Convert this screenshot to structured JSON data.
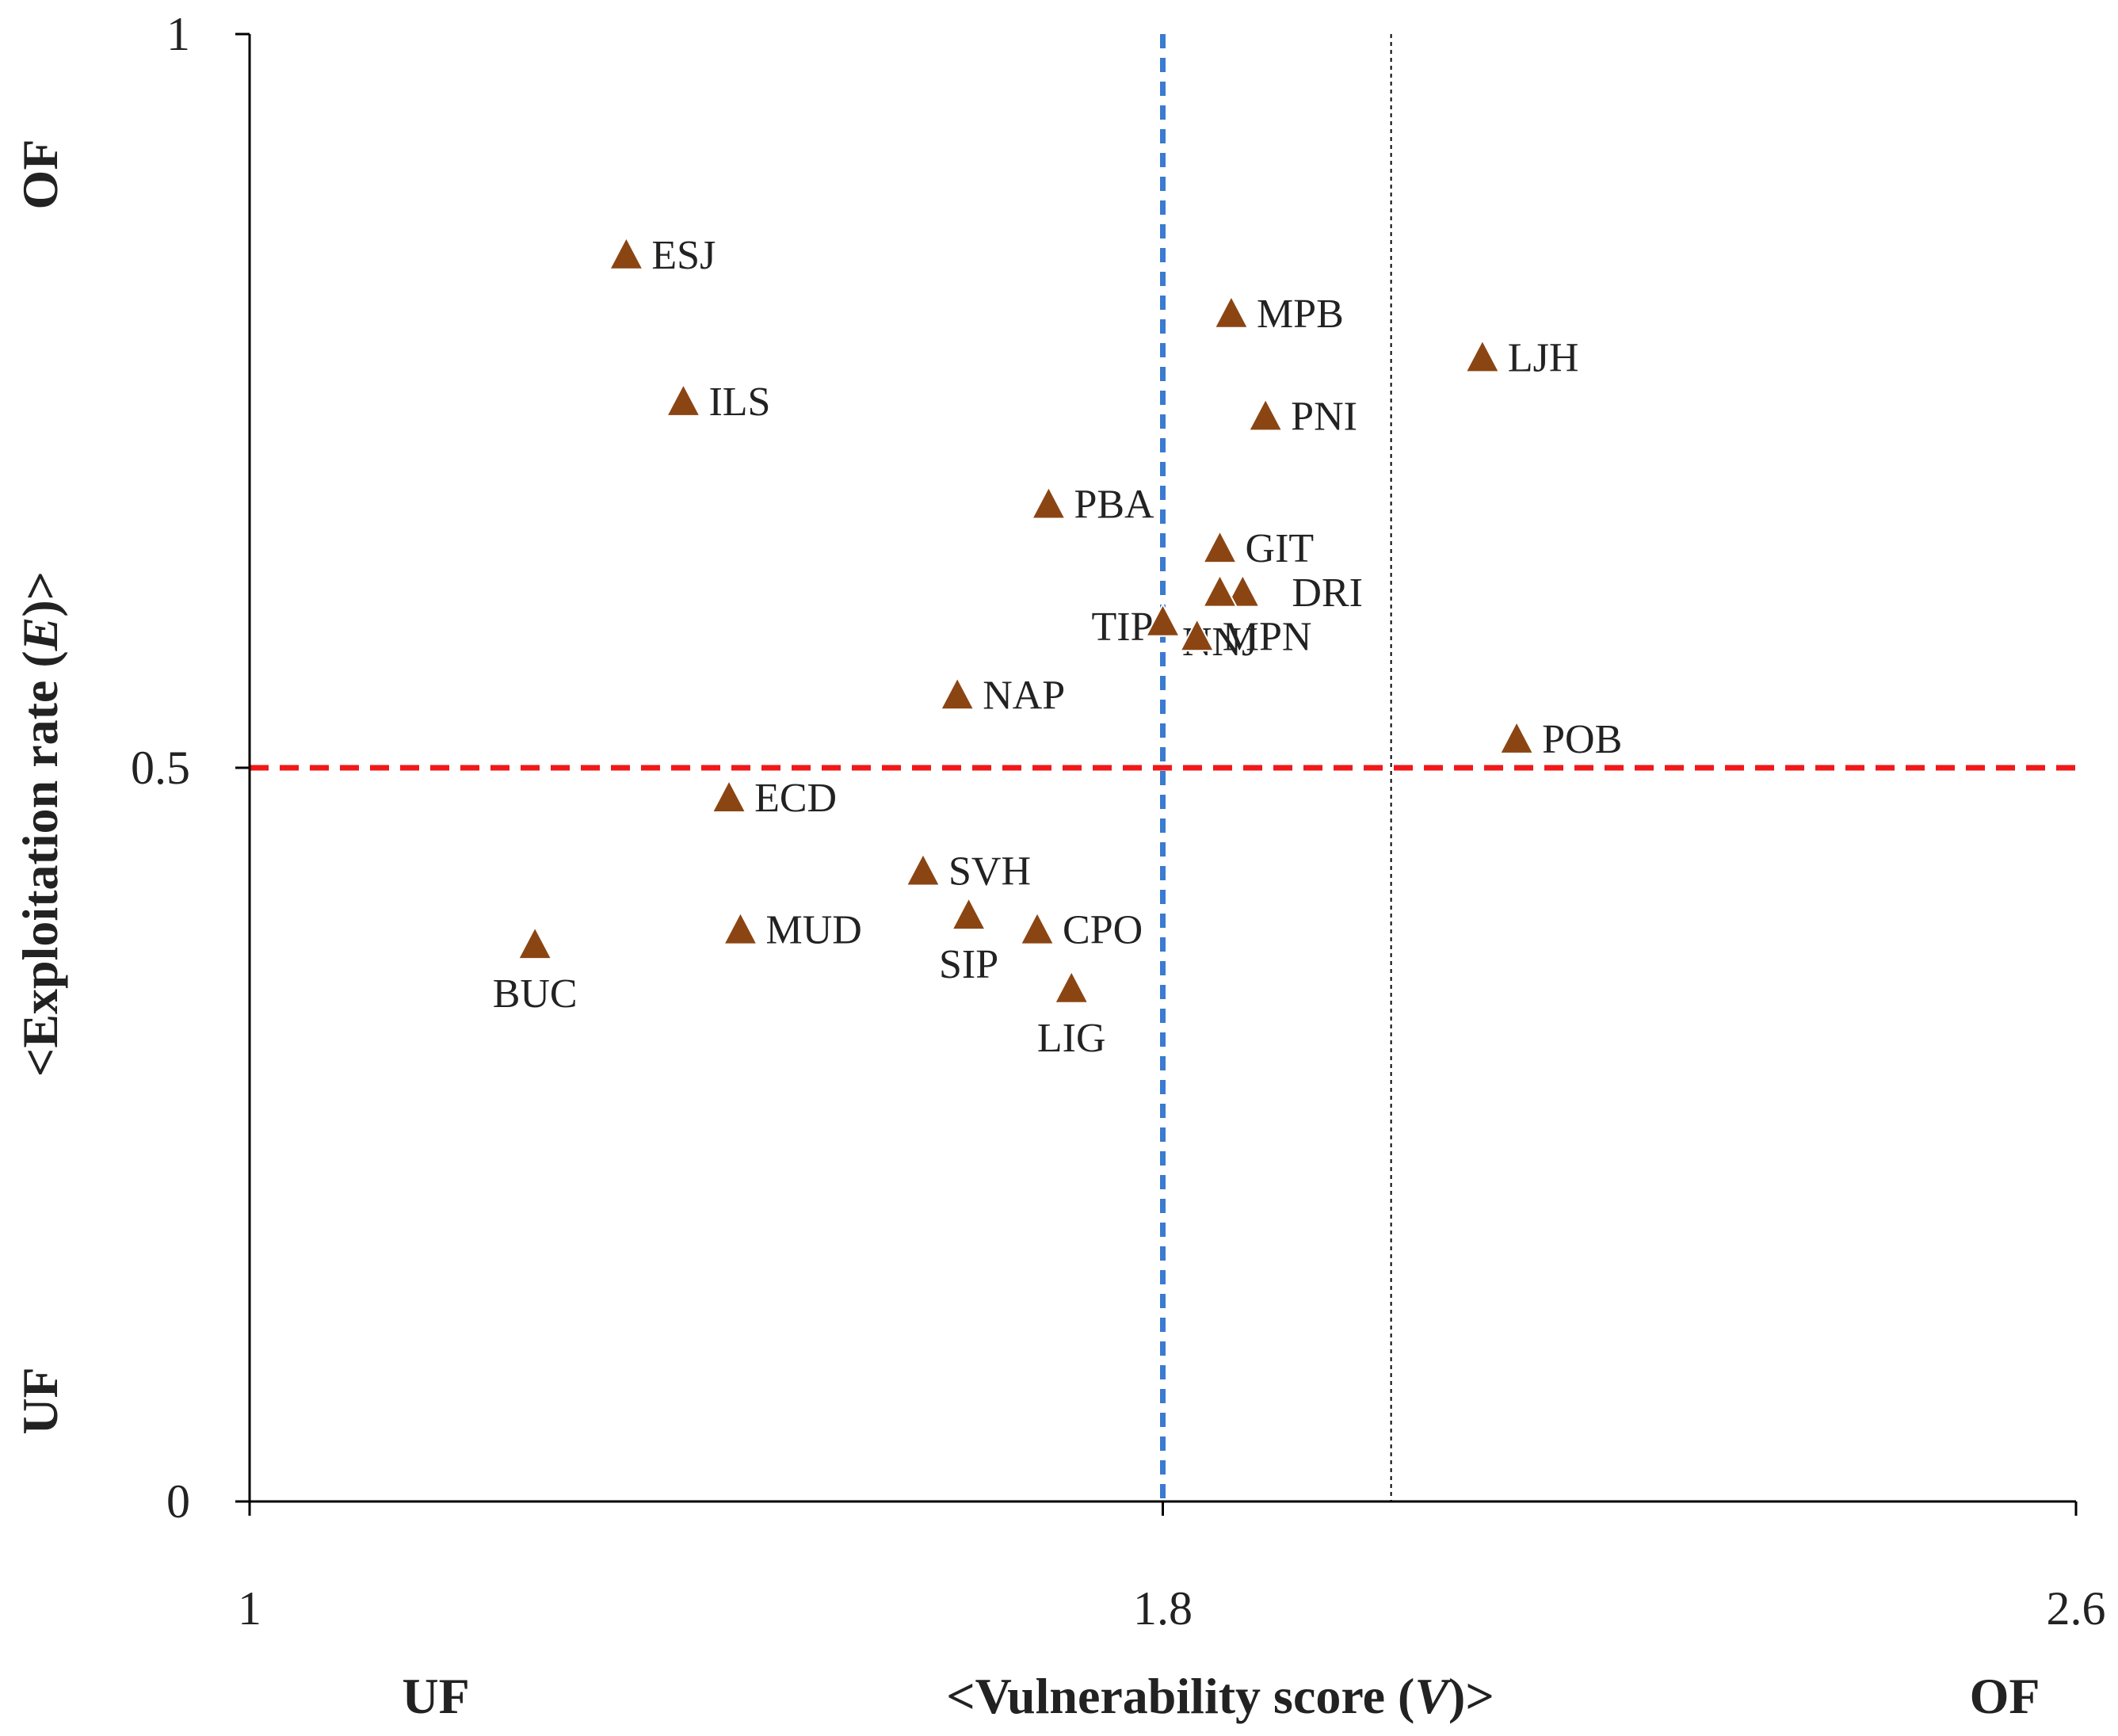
{
  "chart_data": {
    "type": "scatter",
    "title": "",
    "xlabel_prefix": "<Vulnerability score (",
    "xlabel_var": "V",
    "xlabel_suffix": ")>",
    "ylabel_prefix": "<Exploitation rate (",
    "ylabel_var": "E",
    "ylabel_suffix": ")>",
    "xlim": [
      1,
      2.6
    ],
    "ylim": [
      0,
      1
    ],
    "xticks": [
      "1",
      "1.8",
      "2.6"
    ],
    "yticks": [
      "0",
      "0.5",
      "1"
    ],
    "x_region_labels": {
      "low": "UF",
      "high": "OF"
    },
    "y_region_labels": {
      "low": "UF",
      "high": "OF"
    },
    "reference_lines": {
      "vertical_blue_x": 1.8,
      "horizontal_red_y": 0.5,
      "vertical_thin_x": 2.0
    },
    "colors": {
      "marker": "#8B4513",
      "blue_line": "#3B7BD0",
      "red_line": "#F01818",
      "axis": "#000000"
    },
    "points": [
      {
        "label": "ESJ",
        "x": 1.33,
        "y": 0.85,
        "label_pos": "right"
      },
      {
        "label": "ILS",
        "x": 1.38,
        "y": 0.75,
        "label_pos": "right"
      },
      {
        "label": "MPB",
        "x": 1.86,
        "y": 0.81,
        "label_pos": "right"
      },
      {
        "label": "LJH",
        "x": 2.08,
        "y": 0.78,
        "label_pos": "right"
      },
      {
        "label": "PNI",
        "x": 1.89,
        "y": 0.74,
        "label_pos": "right"
      },
      {
        "label": "PBA",
        "x": 1.7,
        "y": 0.68,
        "label_pos": "right"
      },
      {
        "label": "GIT",
        "x": 1.85,
        "y": 0.65,
        "label_pos": "right"
      },
      {
        "label": "DRI",
        "x": 1.87,
        "y": 0.62,
        "label_pos": "right-far"
      },
      {
        "label": "NNJ",
        "x": 1.85,
        "y": 0.62,
        "label_pos": "below"
      },
      {
        "label": "TIP",
        "x": 1.8,
        "y": 0.6,
        "label_pos": "left"
      },
      {
        "label": "MPN",
        "x": 1.83,
        "y": 0.59,
        "label_pos": "right"
      },
      {
        "label": "NAP",
        "x": 1.62,
        "y": 0.55,
        "label_pos": "right"
      },
      {
        "label": "POB",
        "x": 2.11,
        "y": 0.52,
        "label_pos": "right"
      },
      {
        "label": "ECD",
        "x": 1.42,
        "y": 0.48,
        "label_pos": "right"
      },
      {
        "label": "SVH",
        "x": 1.59,
        "y": 0.43,
        "label_pos": "right"
      },
      {
        "label": "SIP",
        "x": 1.63,
        "y": 0.4,
        "label_pos": "below"
      },
      {
        "label": "MUD",
        "x": 1.43,
        "y": 0.39,
        "label_pos": "right"
      },
      {
        "label": "CPO",
        "x": 1.69,
        "y": 0.39,
        "label_pos": "right"
      },
      {
        "label": "BUC",
        "x": 1.25,
        "y": 0.38,
        "label_pos": "below"
      },
      {
        "label": "LIG",
        "x": 1.72,
        "y": 0.35,
        "label_pos": "below"
      }
    ]
  }
}
